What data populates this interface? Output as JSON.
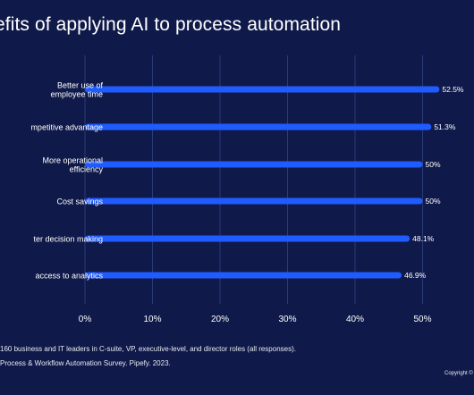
{
  "chart_data": {
    "type": "bar",
    "orientation": "horizontal",
    "title": "efits of applying AI to process automation",
    "categories": [
      [
        "Better use of",
        "employee time"
      ],
      [
        "mpetitive advantage"
      ],
      [
        "More operational",
        "efficiency"
      ],
      [
        "Cost savings"
      ],
      [
        "ter decision making"
      ],
      [
        "access to analytics"
      ]
    ],
    "values": [
      52.5,
      51.3,
      50,
      50,
      48.1,
      46.9
    ],
    "value_labels": [
      "52.5%",
      "51.3%",
      "50%",
      "50%",
      "48.1%",
      "46.9%"
    ],
    "x_ticks": [
      "0%",
      "10%",
      "20%",
      "30%",
      "40%",
      "50%"
    ],
    "x_tick_values": [
      0,
      10,
      20,
      30,
      40,
      50
    ],
    "xlim": [
      0,
      60
    ],
    "grid": true,
    "bar_color": "#1f5cff",
    "grid_color": "#2a3b78"
  },
  "footnotes": {
    "sample": " 160 business and IT leaders in C-suite, VP, executive-level, and director roles (all responses).",
    "source": "Process & Workflow Automation Survey. Pipefy. 2023.",
    "copyright": "Copyright ©"
  }
}
